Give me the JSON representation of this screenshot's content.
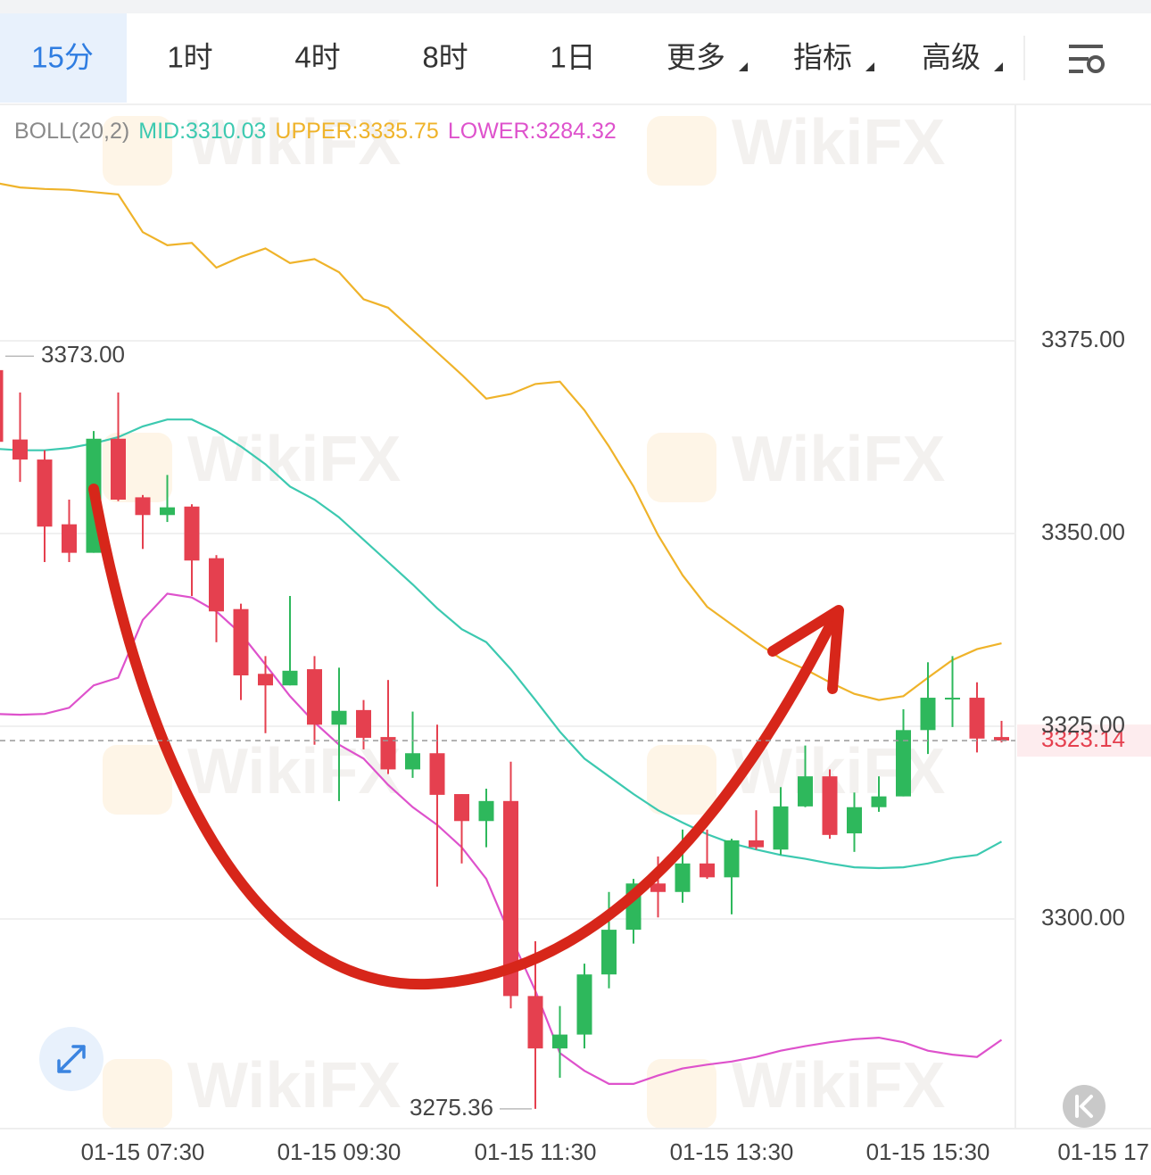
{
  "tabs": [
    "15分",
    "1时",
    "4时",
    "8时",
    "1日",
    "更多",
    "指标",
    "高级"
  ],
  "watermark": "WikiFX",
  "chart_data": {
    "type": "candlestick",
    "indicator": "BOLL(20,2)",
    "categories": [
      null,
      null,
      null,
      null,
      null,
      null,
      "01-15 07:30",
      null,
      null,
      null,
      null,
      null,
      null,
      null,
      "01-15 09:30",
      null,
      null,
      null,
      null,
      null,
      null,
      null,
      "01-15 11:30",
      null,
      null,
      null,
      null,
      null,
      null,
      null,
      "01-15 13:30",
      null,
      null,
      null,
      null,
      null,
      null,
      null,
      "01-15 15:30",
      null,
      null,
      null,
      null,
      null,
      null,
      null,
      "01-15 17"
    ],
    "open": [
      3371.2,
      3362.2,
      3359.6,
      3351.2,
      3347.5,
      3362.3,
      3354.7,
      3352.4,
      3353.5,
      3346.8,
      3340.2,
      3331.8,
      3330.3,
      3332.4,
      3325.2,
      3327.1,
      3323.6,
      3319.4,
      3321.5,
      3316.2,
      3312.7,
      3315.3,
      3290.0,
      3283.2,
      3285.0,
      3292.8,
      3298.6,
      3304.6,
      3303.5,
      3307.2,
      3305.4,
      3310.2,
      3309.0,
      3314.6,
      3318.5,
      3311.1,
      3314.5,
      3315.9,
      3324.5,
      3328.5,
      3328.7,
      3323.6,
      null,
      null,
      null,
      null,
      null
    ],
    "high": [
      3373,
      3368.3,
      3360.8,
      3354.4,
      3363.3,
      3368.3,
      3355.0,
      3357.6,
      3353.8,
      3347.2,
      3340.9,
      3334.1,
      3341.9,
      3334.1,
      3332.6,
      3328.4,
      3331.0,
      3326.9,
      3325.2,
      3316.2,
      3316.9,
      3320.4,
      3297.1,
      3288.7,
      3294.2,
      3303.5,
      3305.2,
      3308.1,
      3311.6,
      3311.6,
      3310.4,
      3314.1,
      3317.1,
      3322.5,
      3319.4,
      3316.4,
      3318.5,
      3327.2,
      3333.3,
      3334.1,
      3330.7,
      3325.7,
      null,
      null,
      null,
      null,
      null
    ],
    "low": [
      3361.5,
      3356.7,
      3346.3,
      3346.3,
      3347.5,
      3354.2,
      3348.0,
      3351.5,
      3341.9,
      3335.9,
      3328.4,
      3324.1,
      3330.3,
      3322.6,
      3315.3,
      3322.0,
      3318.8,
      3318.3,
      3304.2,
      3307.2,
      3309.3,
      3288.4,
      3275.36,
      3279.4,
      3283.2,
      3291.0,
      3296.8,
      3300.2,
      3302.1,
      3305.2,
      3300.6,
      3309.0,
      3308.3,
      3314.5,
      3310.4,
      3308.7,
      3313.9,
      3315.9,
      3321.4,
      3324.9,
      3321.6,
      3322.9,
      null,
      null,
      null,
      null,
      null
    ],
    "close": [
      3361.9,
      3359.6,
      3350.9,
      3347.5,
      3362.3,
      3354.4,
      3352.4,
      3353.4,
      3346.5,
      3339.9,
      3331.6,
      3330.3,
      3332.2,
      3325.2,
      3327.0,
      3323.5,
      3319.4,
      3321.5,
      3316.1,
      3312.7,
      3315.3,
      3290.0,
      3283.2,
      3285.0,
      3292.8,
      3298.6,
      3304.6,
      3303.5,
      3307.2,
      3305.4,
      3310.2,
      3309.3,
      3314.6,
      3318.5,
      3310.9,
      3314.5,
      3315.9,
      3324.5,
      3328.7,
      3328.7,
      3323.4,
      3323.14,
      null,
      null,
      null,
      null,
      null
    ],
    "up_color": "#2eb85c",
    "down_color": "#e5404f",
    "series": [
      {
        "label": "MID:3310.03",
        "color": "#3cc9b0",
        "values": [
          3361.0,
          3360.8,
          3360.8,
          3361.1,
          3361.7,
          3362.5,
          3363.9,
          3364.8,
          3364.8,
          3363.3,
          3361.3,
          3359.0,
          3356.1,
          3354.4,
          3352.1,
          3349.2,
          3346.3,
          3343.4,
          3340.3,
          3337.6,
          3335.9,
          3332.4,
          3328.4,
          3324.3,
          3320.8,
          3318.5,
          3316.2,
          3314.1,
          3312.5,
          3311.0,
          3309.8,
          3309.0,
          3308.3,
          3307.8,
          3307.2,
          3306.7,
          3306.6,
          3306.7,
          3307.2,
          3307.9,
          3308.3,
          3310.03,
          null,
          null,
          null,
          null,
          null
        ]
      },
      {
        "label": "UPPER:3335.75",
        "color": "#efb32a",
        "values": [
          3395.5,
          3394.9,
          3394.7,
          3394.6,
          3394.3,
          3394.0,
          3389.1,
          3387.4,
          3387.7,
          3384.5,
          3385.9,
          3387.0,
          3385.1,
          3385.6,
          3383.9,
          3380.4,
          3379.3,
          3376.4,
          3373.5,
          3370.6,
          3367.5,
          3368.1,
          3369.4,
          3369.7,
          3366.0,
          3361.3,
          3356.1,
          3349.8,
          3344.6,
          3340.5,
          3338.2,
          3335.9,
          3333.8,
          3332.4,
          3330.7,
          3329.2,
          3328.4,
          3328.9,
          3331.3,
          3333.6,
          3335.0,
          3335.75,
          null,
          null,
          null,
          null,
          null
        ]
      },
      {
        "label": "LOWER:3284.32",
        "color": "#de52cc",
        "values": [
          3326.6,
          3326.5,
          3326.6,
          3327.4,
          3330.3,
          3331.3,
          3338.8,
          3342.2,
          3341.7,
          3339.9,
          3337.0,
          3333.0,
          3328.9,
          3325.5,
          3322.6,
          3320.8,
          3317.4,
          3314.5,
          3312.2,
          3309.3,
          3305.2,
          3297.7,
          3290.7,
          3282.6,
          3280.3,
          3278.6,
          3278.6,
          3279.7,
          3280.6,
          3281.1,
          3281.5,
          3282.1,
          3282.9,
          3283.5,
          3284.0,
          3284.4,
          3284.6,
          3284.0,
          3282.9,
          3282.4,
          3282.1,
          3284.32,
          null,
          null,
          null,
          null,
          null
        ]
      }
    ],
    "ylim": [
      3272.8,
      3405.56
    ],
    "yticks": [
      {
        "value": 3375,
        "label": "3375.00"
      },
      {
        "value": 3350,
        "label": "3350.00"
      },
      {
        "value": 3325,
        "label": "3325.00"
      },
      {
        "value": 3300,
        "label": "3300.00"
      }
    ],
    "grid": true,
    "last_price": 3323.14,
    "max_label": {
      "value": 3373,
      "label": "3373.00"
    },
    "min_label": 3275.36
  }
}
